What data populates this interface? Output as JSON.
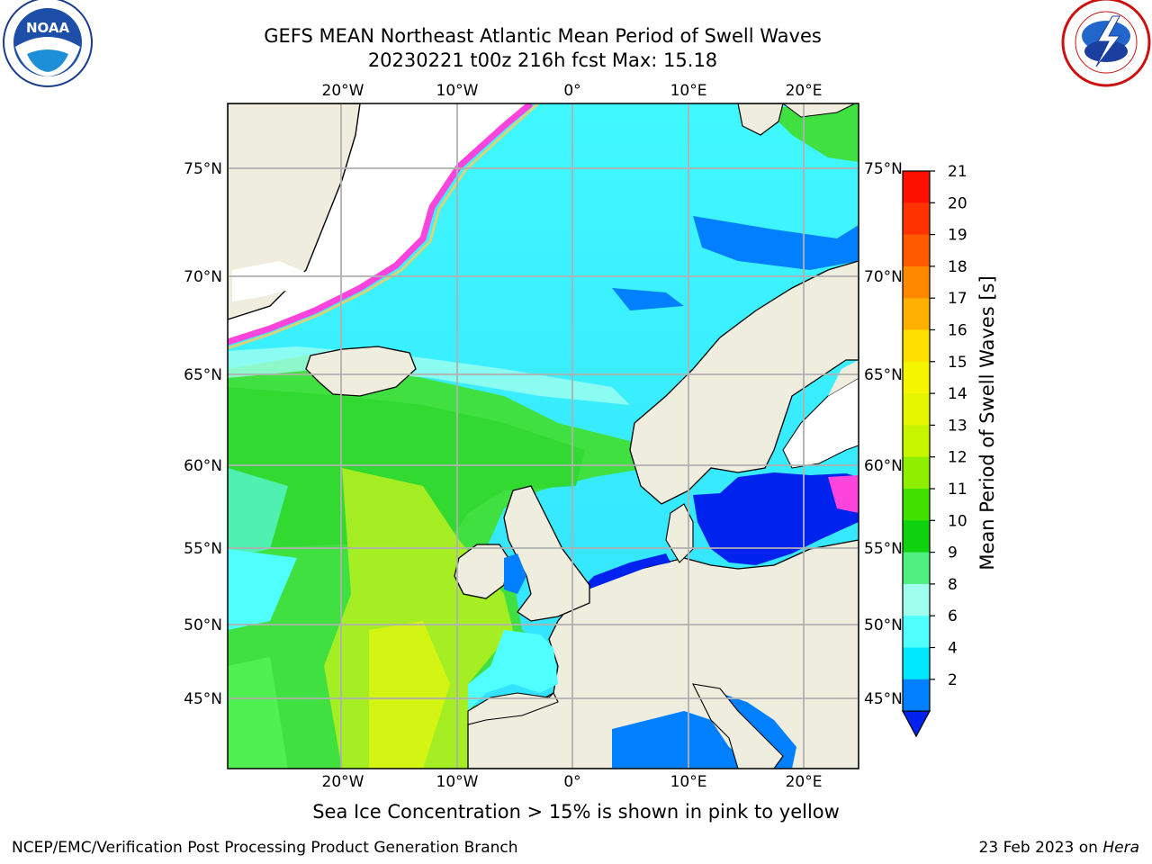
{
  "header": {
    "title_line1": "GEFS MEAN Northeast Atlantic Mean Period of Swell Waves",
    "title_line2": "20230221 t00z 216h fcst   Max: 15.18"
  },
  "logos": {
    "left": {
      "text": "NOAA",
      "ring_text": "NATIONAL OCEANIC AND ATMOSPHERIC ADMINISTRATION · U.S. DEPARTMENT OF COMMERCE"
    },
    "right": {
      "ring_text": "NATIONAL WEATHER SERVICE"
    }
  },
  "map": {
    "lon_ticks": [
      "20°W",
      "10°W",
      "0°",
      "10°E",
      "20°E"
    ],
    "lat_ticks": [
      "75°N",
      "70°N",
      "65°N",
      "60°N",
      "55°N",
      "50°N",
      "45°N"
    ],
    "colors": {
      "land": "#efedde",
      "grid": "#b0b0b0",
      "ice_pink": "#ff44dd",
      "ice_yellow": "#ffcc55"
    }
  },
  "colorbar": {
    "label": "Mean Period of Swell Waves [s]",
    "ticks": [
      "21",
      "20",
      "19",
      "18",
      "17",
      "16",
      "15",
      "14",
      "13",
      "12",
      "11",
      "10",
      "9",
      "8",
      "6",
      "4",
      "2"
    ],
    "colors": [
      "#ff1100",
      "#ff3300",
      "#ff5a00",
      "#ff8800",
      "#ffb000",
      "#ffe000",
      "#f5f500",
      "#e6f500",
      "#c8f500",
      "#8ef000",
      "#40e000",
      "#10d210",
      "#50f080",
      "#a0ffee",
      "#50ffff",
      "#00e8ff",
      "#0080ff",
      "#0022ee"
    ]
  },
  "caption": "Sea Ice Concentration > 15% is shown in pink to yellow",
  "footer": {
    "left": "NCEP/EMC/Verification Post Processing Product Generation Branch",
    "right_prefix": "23 Feb 2023 on",
    "right_host": "Hera"
  }
}
